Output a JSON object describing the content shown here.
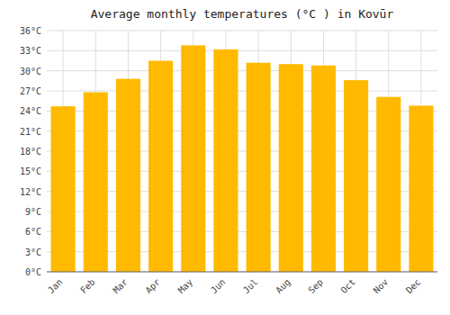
{
  "chart_data": {
    "type": "bar",
    "title": "Average monthly temperatures (°C ) in Kovūr",
    "categories": [
      "Jan",
      "Feb",
      "Mar",
      "Apr",
      "May",
      "Jun",
      "Jul",
      "Aug",
      "Sep",
      "Oct",
      "Nov",
      "Dec"
    ],
    "values": [
      24.7,
      26.8,
      28.8,
      31.5,
      33.8,
      33.2,
      31.2,
      31.0,
      30.8,
      28.6,
      26.1,
      24.8
    ],
    "color": "#FFBA00",
    "ylim": [
      0,
      36
    ],
    "yticks": [
      {
        "value": 0,
        "label": "0°C"
      },
      {
        "value": 3,
        "label": "3°C"
      },
      {
        "value": 6,
        "label": "6°C"
      },
      {
        "value": 9,
        "label": "9°C"
      },
      {
        "value": 12,
        "label": "12°C"
      },
      {
        "value": 15,
        "label": "15°C"
      },
      {
        "value": 18,
        "label": "18°C"
      },
      {
        "value": 21,
        "label": "21°C"
      },
      {
        "value": 24,
        "label": "24°C"
      },
      {
        "value": 27,
        "label": "27°C"
      },
      {
        "value": 30,
        "label": "30°C"
      },
      {
        "value": 33,
        "label": "33°C"
      },
      {
        "value": 36,
        "label": "36°C"
      }
    ],
    "grid": true
  }
}
